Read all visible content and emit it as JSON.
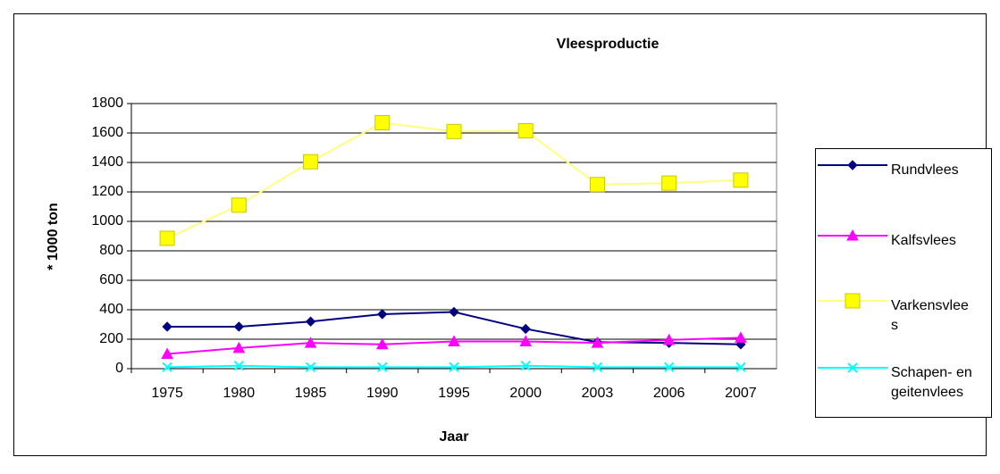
{
  "chart_data": {
    "type": "line",
    "title": "Vleesproductie",
    "x_label": "Jaar",
    "y_label": "* 1000 ton",
    "categories": [
      "1975",
      "1980",
      "1985",
      "1990",
      "1995",
      "2000",
      "2003",
      "2006",
      "2007"
    ],
    "series": [
      {
        "name": "Rundvlees",
        "color": "#000080",
        "marker": "diamond",
        "values": [
          285,
          285,
          320,
          370,
          385,
          270,
          180,
          175,
          165
        ]
      },
      {
        "name": "Kalfsvlees",
        "color": "#ff00ff",
        "marker": "triangle",
        "values": [
          100,
          140,
          175,
          165,
          185,
          185,
          175,
          195,
          210
        ]
      },
      {
        "name": "Varkensvlees",
        "color": "#ffff00",
        "marker": "square",
        "values": [
          885,
          1110,
          1405,
          1670,
          1610,
          1615,
          1250,
          1260,
          1280
        ]
      },
      {
        "name": "Schapen- en geitenvlees",
        "color": "#00ffff",
        "marker": "cross",
        "values": [
          10,
          20,
          10,
          10,
          10,
          20,
          10,
          10,
          10
        ]
      }
    ],
    "ylim": [
      0,
      1800
    ],
    "yticks": [
      0,
      200,
      400,
      600,
      800,
      1000,
      1200,
      1400,
      1600,
      1800
    ],
    "grid": true,
    "legend": "right"
  }
}
